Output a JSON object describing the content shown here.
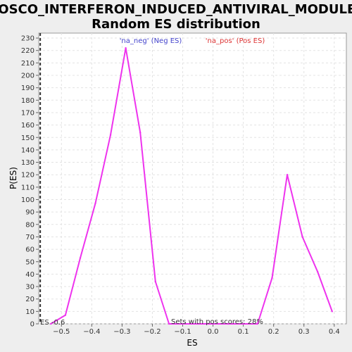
{
  "chart_data": {
    "type": "line",
    "title_line1": "BOSCO_INTERFERON_INDUCED_ANTIVIRAL_MODULE:",
    "title_line2": "Random ES distribution",
    "xlabel": "ES",
    "ylabel": "P(ES)",
    "xlim": [
      -0.575,
      0.44
    ],
    "ylim": [
      0,
      234
    ],
    "xticks": [
      -0.5,
      -0.4,
      -0.3,
      -0.2,
      -0.1,
      0.0,
      0.1,
      0.2,
      0.3,
      0.4
    ],
    "xtick_labels": [
      "−0.5",
      "−0.4",
      "−0.3",
      "−0.2",
      "−0.1",
      "0.0",
      "0.1",
      "0.2",
      "0.3",
      "0.4"
    ],
    "yticks": [
      0,
      10,
      20,
      30,
      40,
      50,
      60,
      70,
      80,
      90,
      100,
      110,
      120,
      130,
      140,
      150,
      160,
      170,
      180,
      190,
      200,
      210,
      220,
      230
    ],
    "grid": true,
    "series": [
      {
        "color": "#ee33ee",
        "x": [
          -0.535,
          -0.487,
          -0.438,
          -0.388,
          -0.338,
          -0.288,
          -0.24,
          -0.19,
          -0.145,
          -0.1,
          -0.05,
          0.0,
          0.05,
          0.1,
          0.147,
          0.195,
          0.245,
          0.295,
          0.345,
          0.393
        ],
        "y": [
          0,
          7,
          53,
          97,
          152,
          222,
          154,
          34,
          0,
          0,
          0,
          0,
          0,
          0,
          0,
          37,
          120,
          70,
          42,
          10
        ]
      }
    ],
    "legend": [
      {
        "label": "'na_neg' (Neg ES)",
        "color": "#4444cc"
      },
      {
        "label": "'na_pos' (Pos ES)",
        "color": "#dd3333"
      }
    ],
    "es_marker": {
      "x": -0.57,
      "label": "ES -0.6"
    },
    "annotation": "Sets with pos scores: 28%"
  }
}
